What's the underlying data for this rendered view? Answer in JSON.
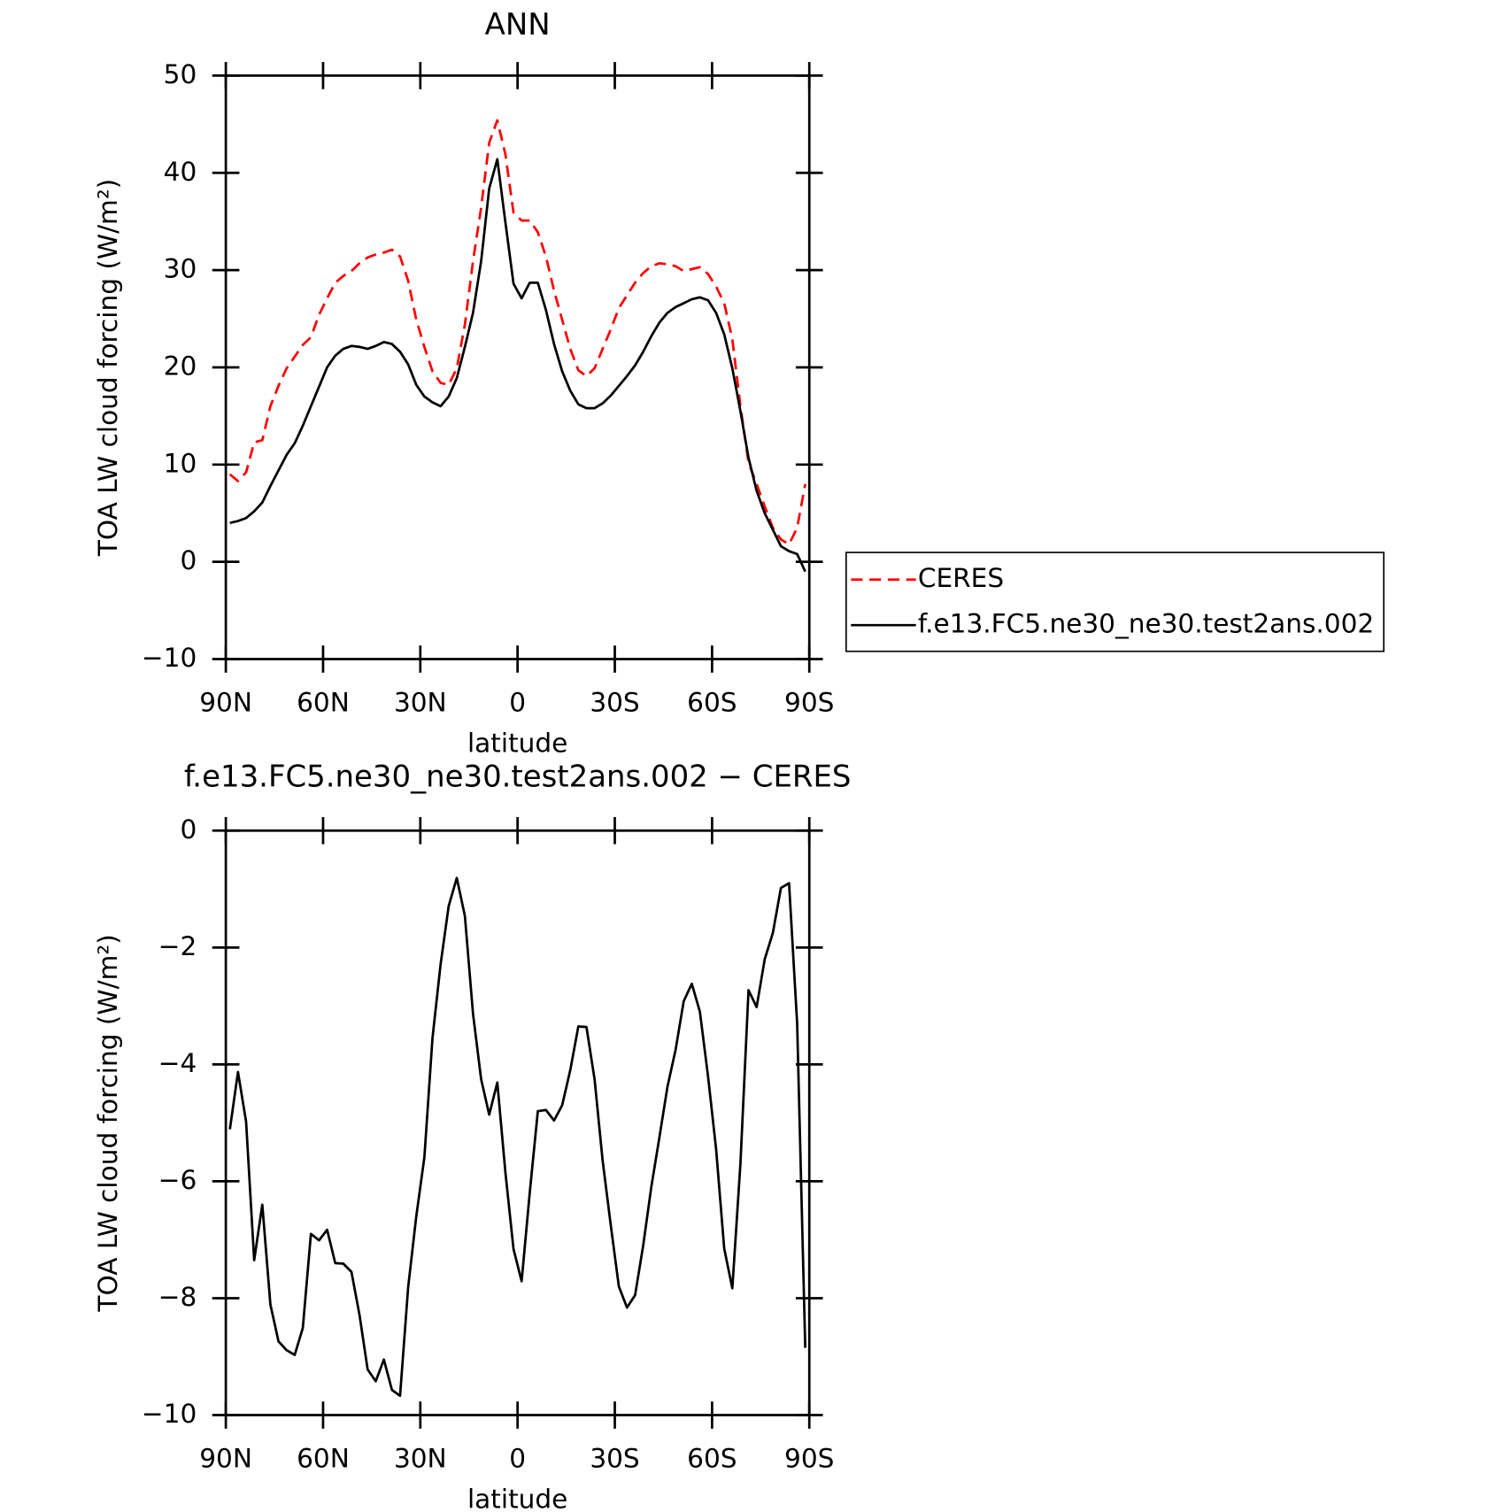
{
  "chart_data": [
    {
      "type": "line",
      "title": "ANN",
      "xlabel": "latitude",
      "ylabel": "TOA LW cloud forcing (W/m²)",
      "x": [
        88.75,
        86.25,
        83.75,
        81.25,
        78.75,
        76.25,
        73.75,
        71.25,
        68.75,
        66.25,
        63.75,
        61.25,
        58.75,
        56.25,
        53.75,
        51.25,
        48.75,
        46.25,
        43.75,
        41.25,
        38.75,
        36.25,
        33.75,
        31.25,
        28.75,
        26.25,
        23.75,
        21.25,
        18.75,
        16.25,
        13.75,
        11.25,
        8.75,
        6.25,
        3.75,
        1.25,
        -1.25,
        -3.75,
        -6.25,
        -8.75,
        -11.25,
        -13.75,
        -16.25,
        -18.75,
        -21.25,
        -23.75,
        -26.25,
        -28.75,
        -31.25,
        -33.75,
        -36.25,
        -38.75,
        -41.25,
        -43.75,
        -46.25,
        -48.75,
        -51.25,
        -53.75,
        -56.25,
        -58.75,
        -61.25,
        -63.75,
        -66.25,
        -68.75,
        -71.25,
        -73.75,
        -76.25,
        -78.75,
        -81.25,
        -83.75,
        -86.25,
        -88.75
      ],
      "series": [
        {
          "name": "CERES",
          "color": "#ff0000",
          "dash": "dashed",
          "values": [
            9.0,
            8.3,
            9.2,
            12.3,
            12.5,
            16.0,
            18.1,
            19.9,
            21.1,
            22.3,
            23.1,
            25.4,
            27.1,
            28.7,
            29.4,
            29.9,
            30.7,
            31.3,
            31.6,
            31.8,
            32.1,
            31.4,
            28.9,
            24.9,
            22.1,
            19.6,
            18.4,
            18.2,
            19.9,
            24.4,
            30.9,
            36.4,
            43.1,
            45.4,
            41.9,
            35.9,
            35.1,
            35.1,
            33.9,
            31.4,
            27.9,
            24.9,
            21.9,
            19.7,
            19.1,
            19.9,
            21.9,
            23.9,
            26.1,
            27.4,
            28.7,
            29.7,
            30.4,
            30.7,
            30.6,
            30.4,
            29.9,
            30.1,
            30.3,
            29.6,
            28.3,
            26.6,
            22.9,
            16.0,
            10.2,
            8.0,
            5.7,
            3.5,
            2.3,
            1.8,
            3.5,
            8.0
          ]
        },
        {
          "name": "f.e13.FC5.ne30_ne30.test2ans.002",
          "color": "#000000",
          "dash": "solid",
          "values": [
            4.0,
            4.2,
            4.5,
            5.2,
            6.1,
            7.8,
            9.4,
            11.0,
            12.2,
            14.0,
            16.0,
            18.0,
            20.0,
            21.2,
            21.9,
            22.2,
            22.1,
            21.9,
            22.2,
            22.6,
            22.4,
            21.6,
            20.3,
            18.2,
            17.0,
            16.4,
            16.0,
            17.0,
            18.9,
            22.1,
            25.6,
            30.9,
            38.4,
            41.4,
            34.9,
            28.6,
            27.1,
            28.7,
            28.7,
            25.9,
            22.4,
            19.6,
            17.6,
            16.2,
            15.8,
            15.8,
            16.3,
            17.1,
            18.1,
            19.1,
            20.2,
            21.6,
            23.2,
            24.6,
            25.6,
            26.2,
            26.6,
            27.0,
            27.2,
            26.9,
            25.6,
            23.4,
            19.9,
            15.5,
            10.7,
            7.3,
            5.0,
            3.3,
            1.6,
            1.1,
            0.8,
            -1.0
          ]
        }
      ],
      "xlim": [
        90,
        -90
      ],
      "xticks": [
        {
          "value": 90,
          "label": "90N"
        },
        {
          "value": 60,
          "label": "60N"
        },
        {
          "value": 30,
          "label": "30N"
        },
        0,
        {
          "value": -30,
          "label": "30S"
        },
        {
          "value": -60,
          "label": "60S"
        },
        {
          "value": -90,
          "label": "90S"
        }
      ],
      "ylim": [
        -10,
        50
      ],
      "yticks": [
        {
          "value": -10,
          "label": "−10"
        },
        0,
        10,
        20,
        30,
        40,
        50
      ],
      "legend": "right"
    },
    {
      "type": "line",
      "title": "f.e13.FC5.ne30_ne30.test2ans.002 − CERES",
      "xlabel": "latitude",
      "ylabel": "TOA LW cloud forcing (W/m²)",
      "x": [
        88.75,
        86.25,
        83.75,
        81.25,
        78.75,
        76.25,
        73.75,
        71.25,
        68.75,
        66.25,
        63.75,
        61.25,
        58.75,
        56.25,
        53.75,
        51.25,
        48.75,
        46.25,
        43.75,
        41.25,
        38.75,
        36.25,
        33.75,
        31.25,
        28.75,
        26.25,
        23.75,
        21.25,
        18.75,
        16.25,
        13.75,
        11.25,
        8.75,
        6.25,
        3.75,
        1.25,
        -1.25,
        -3.75,
        -6.25,
        -8.75,
        -11.25,
        -13.75,
        -16.25,
        -18.75,
        -21.25,
        -23.75,
        -26.25,
        -28.75,
        -31.25,
        -33.75,
        -36.25,
        -38.75,
        -41.25,
        -43.75,
        -46.25,
        -48.75,
        -51.25,
        -53.75,
        -56.25,
        -58.75,
        -61.25,
        -63.75,
        -66.25,
        -68.75,
        -71.25,
        -73.75,
        -76.25,
        -78.75,
        -81.25,
        -83.75,
        -86.25,
        -88.75
      ],
      "color": "#000000",
      "values": [
        -5.11,
        -4.13,
        -4.98,
        -7.35,
        -6.4,
        -8.11,
        -8.74,
        -8.89,
        -8.97,
        -8.51,
        -6.9,
        -7.01,
        -6.83,
        -7.4,
        -7.41,
        -7.55,
        -8.29,
        -9.22,
        -9.42,
        -9.05,
        -9.57,
        -9.67,
        -7.81,
        -6.6,
        -5.59,
        -3.55,
        -2.29,
        -1.29,
        -0.81,
        -1.46,
        -3.13,
        -4.25,
        -4.86,
        -4.31,
        -5.85,
        -7.16,
        -7.71,
        -6.2,
        -4.8,
        -4.78,
        -4.96,
        -4.7,
        -4.1,
        -3.35,
        -3.36,
        -4.25,
        -5.65,
        -6.75,
        -7.8,
        -8.16,
        -7.95,
        -7.1,
        -6.1,
        -5.25,
        -4.38,
        -3.75,
        -2.92,
        -2.62,
        -3.1,
        -4.2,
        -5.45,
        -7.15,
        -7.83,
        -5.7,
        -2.73,
        -3.02,
        -2.2,
        -1.75,
        -0.98,
        -0.9,
        -3.3,
        -8.85
      ],
      "xlim": [
        90,
        -90
      ],
      "xticks": [
        {
          "value": 90,
          "label": "90N"
        },
        {
          "value": 60,
          "label": "60N"
        },
        {
          "value": 30,
          "label": "30N"
        },
        0,
        {
          "value": -30,
          "label": "30S"
        },
        {
          "value": -60,
          "label": "60S"
        },
        {
          "value": -90,
          "label": "90S"
        }
      ],
      "ylim": [
        -10,
        0
      ],
      "yticks": [
        {
          "value": -10,
          "label": "−10"
        },
        {
          "value": -8,
          "label": "−8"
        },
        {
          "value": -6,
          "label": "−6"
        },
        {
          "value": -4,
          "label": "−4"
        },
        {
          "value": -2,
          "label": "−2"
        },
        0
      ]
    }
  ]
}
